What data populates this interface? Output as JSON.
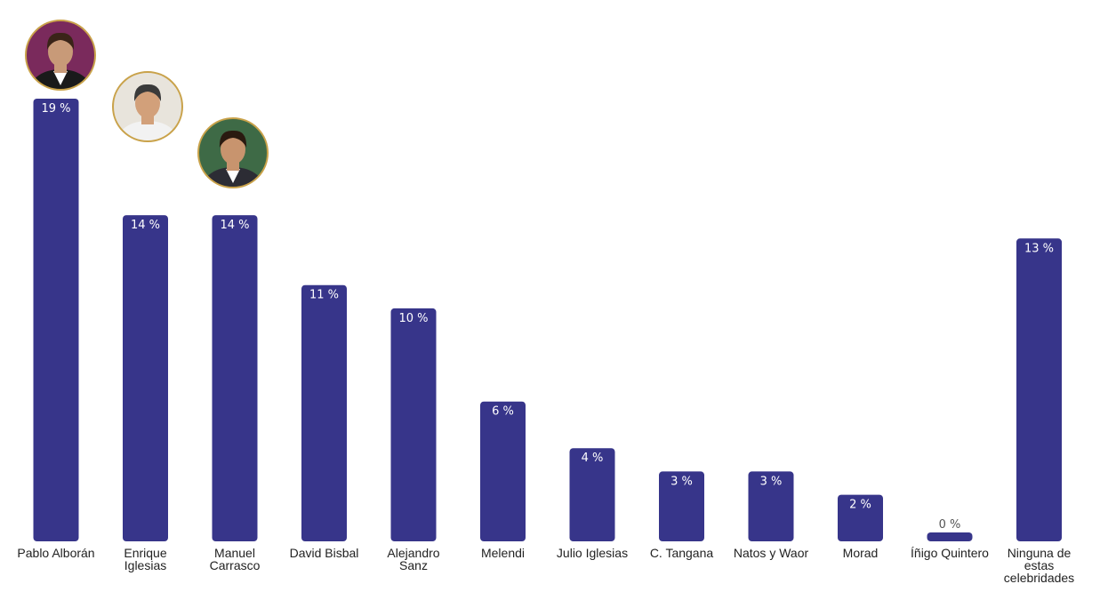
{
  "chart_data": {
    "type": "bar",
    "categories": [
      [
        "Pablo Alborán"
      ],
      [
        "Enrique",
        "Iglesias"
      ],
      [
        "Manuel",
        "Carrasco"
      ],
      [
        "David Bisbal"
      ],
      [
        "Alejandro",
        "Sanz"
      ],
      [
        "Melendi"
      ],
      [
        "Julio Iglesias"
      ],
      [
        "C. Tangana"
      ],
      [
        "Natos y Waor"
      ],
      [
        "Morad"
      ],
      [
        "Íñigo Quintero"
      ],
      [
        "Ninguna de",
        "estas",
        "celebridades"
      ]
    ],
    "values": [
      19,
      14,
      14,
      11,
      10,
      6,
      4,
      3,
      3,
      2,
      0,
      13
    ],
    "value_labels": [
      "19 %",
      "14 %",
      "14 %",
      "11 %",
      "10 %",
      "6 %",
      "4 %",
      "3 %",
      "3 %",
      "2 %",
      "0 %",
      "13 %"
    ],
    "ylim": [
      0,
      19
    ],
    "grid": false,
    "colors": {
      "bar": "#37358a"
    },
    "avatars": [
      {
        "icon": "pablo-alboran-photo-icon",
        "bar_index": 0,
        "colors": {
          "bg": "#7a2a5c",
          "skin": "#c89a78",
          "hair": "#3a2418",
          "suit": "#1a1a1a",
          "shirt": "#ffffff"
        }
      },
      {
        "icon": "enrique-iglesias-photo-icon",
        "bar_index": 1,
        "colors": {
          "bg": "#e8e4dc",
          "skin": "#d2a07a",
          "hair": "#3a3a3a",
          "suit": "#f2f2f2",
          "shirt": "#f2f2f2"
        }
      },
      {
        "icon": "manuel-carrasco-photo-icon",
        "bar_index": 2,
        "colors": {
          "bg": "#3e6a46",
          "skin": "#c8946e",
          "hair": "#2a1a10",
          "suit": "#2c2c34",
          "shirt": "#ffffff"
        }
      }
    ]
  }
}
